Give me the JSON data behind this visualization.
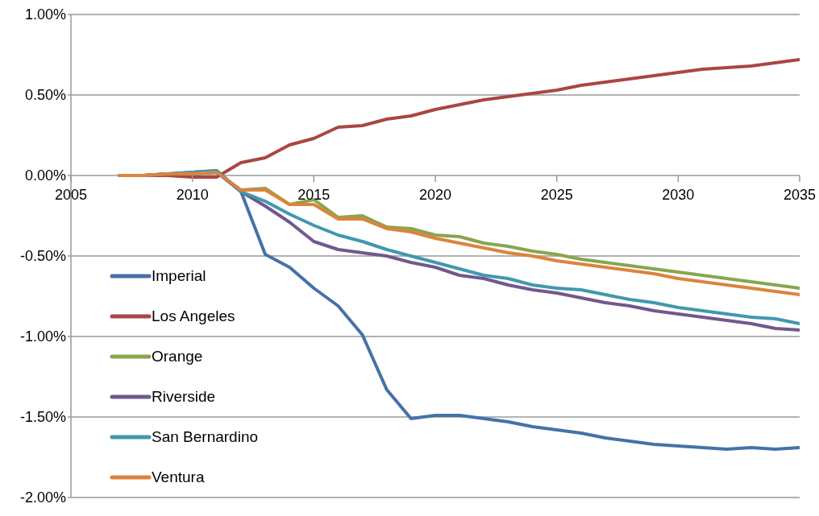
{
  "chart_data": {
    "type": "line",
    "x": [
      2007,
      2008,
      2009,
      2010,
      2011,
      2012,
      2013,
      2014,
      2015,
      2016,
      2017,
      2018,
      2019,
      2020,
      2021,
      2022,
      2023,
      2024,
      2025,
      2026,
      2027,
      2028,
      2029,
      2030,
      2031,
      2032,
      2033,
      2034,
      2035
    ],
    "series": [
      {
        "name": "Imperial",
        "color": "#4572a7",
        "values": [
          0,
          0,
          0.01,
          0.02,
          0.03,
          -0.1,
          -0.49,
          -0.57,
          -0.7,
          -0.81,
          -0.99,
          -1.33,
          -1.51,
          -1.49,
          -1.49,
          -1.51,
          -1.53,
          -1.56,
          -1.58,
          -1.6,
          -1.63,
          -1.65,
          -1.67,
          -1.68,
          -1.69,
          -1.7,
          -1.69,
          -1.7,
          -1.69
        ]
      },
      {
        "name": "Los Angeles",
        "color": "#aa4643",
        "values": [
          0,
          0,
          0,
          -0.01,
          -0.01,
          0.08,
          0.11,
          0.19,
          0.23,
          0.3,
          0.31,
          0.35,
          0.37,
          0.41,
          0.44,
          0.47,
          0.49,
          0.51,
          0.53,
          0.56,
          0.58,
          0.6,
          0.62,
          0.64,
          0.66,
          0.67,
          0.68,
          0.7,
          0.72
        ]
      },
      {
        "name": "Orange",
        "color": "#89a54e",
        "values": [
          0,
          0,
          0.01,
          0.01,
          0.02,
          -0.09,
          -0.08,
          -0.18,
          -0.15,
          -0.26,
          -0.25,
          -0.32,
          -0.33,
          -0.37,
          -0.38,
          -0.42,
          -0.44,
          -0.47,
          -0.49,
          -0.52,
          -0.54,
          -0.56,
          -0.58,
          -0.6,
          -0.62,
          -0.64,
          -0.66,
          -0.68,
          -0.7
        ]
      },
      {
        "name": "Riverside",
        "color": "#71588f",
        "values": [
          0,
          0,
          0.01,
          0.01,
          0.02,
          -0.1,
          -0.19,
          -0.29,
          -0.41,
          -0.46,
          -0.48,
          -0.5,
          -0.54,
          -0.57,
          -0.62,
          -0.64,
          -0.68,
          -0.71,
          -0.73,
          -0.76,
          -0.79,
          -0.81,
          -0.84,
          -0.86,
          -0.88,
          -0.9,
          -0.92,
          -0.95,
          -0.96
        ]
      },
      {
        "name": "San Bernardino",
        "color": "#4198af",
        "values": [
          0,
          0,
          0.01,
          0.02,
          0.03,
          -0.1,
          -0.16,
          -0.24,
          -0.31,
          -0.37,
          -0.41,
          -0.46,
          -0.5,
          -0.54,
          -0.58,
          -0.62,
          -0.64,
          -0.68,
          -0.7,
          -0.71,
          -0.74,
          -0.77,
          -0.79,
          -0.82,
          -0.84,
          -0.86,
          -0.88,
          -0.89,
          -0.92
        ]
      },
      {
        "name": "Ventura",
        "color": "#db843d",
        "values": [
          0,
          0,
          0.01,
          0.01,
          0.02,
          -0.09,
          -0.09,
          -0.18,
          -0.18,
          -0.27,
          -0.27,
          -0.33,
          -0.35,
          -0.39,
          -0.42,
          -0.45,
          -0.48,
          -0.5,
          -0.53,
          -0.55,
          -0.57,
          -0.59,
          -0.61,
          -0.64,
          -0.66,
          -0.68,
          -0.7,
          -0.72,
          -0.74
        ]
      }
    ],
    "xlim": [
      2005,
      2035
    ],
    "xticks": [
      2005,
      2010,
      2015,
      2020,
      2025,
      2030,
      2035
    ],
    "ylim": [
      -2,
      1
    ],
    "yticks": [
      {
        "value": -2,
        "label": "-2.00%"
      },
      {
        "value": -1.5,
        "label": "-1.50%"
      },
      {
        "value": -1,
        "label": "-1.00%"
      },
      {
        "value": -0.5,
        "label": "-0.50%"
      },
      {
        "value": 0,
        "label": "0.00%"
      },
      {
        "value": 0.5,
        "label": "0.50%"
      },
      {
        "value": 1,
        "label": "1.00%"
      }
    ],
    "grid": "y",
    "legend": "bottom left",
    "marker": "none",
    "line_style": "solid"
  }
}
